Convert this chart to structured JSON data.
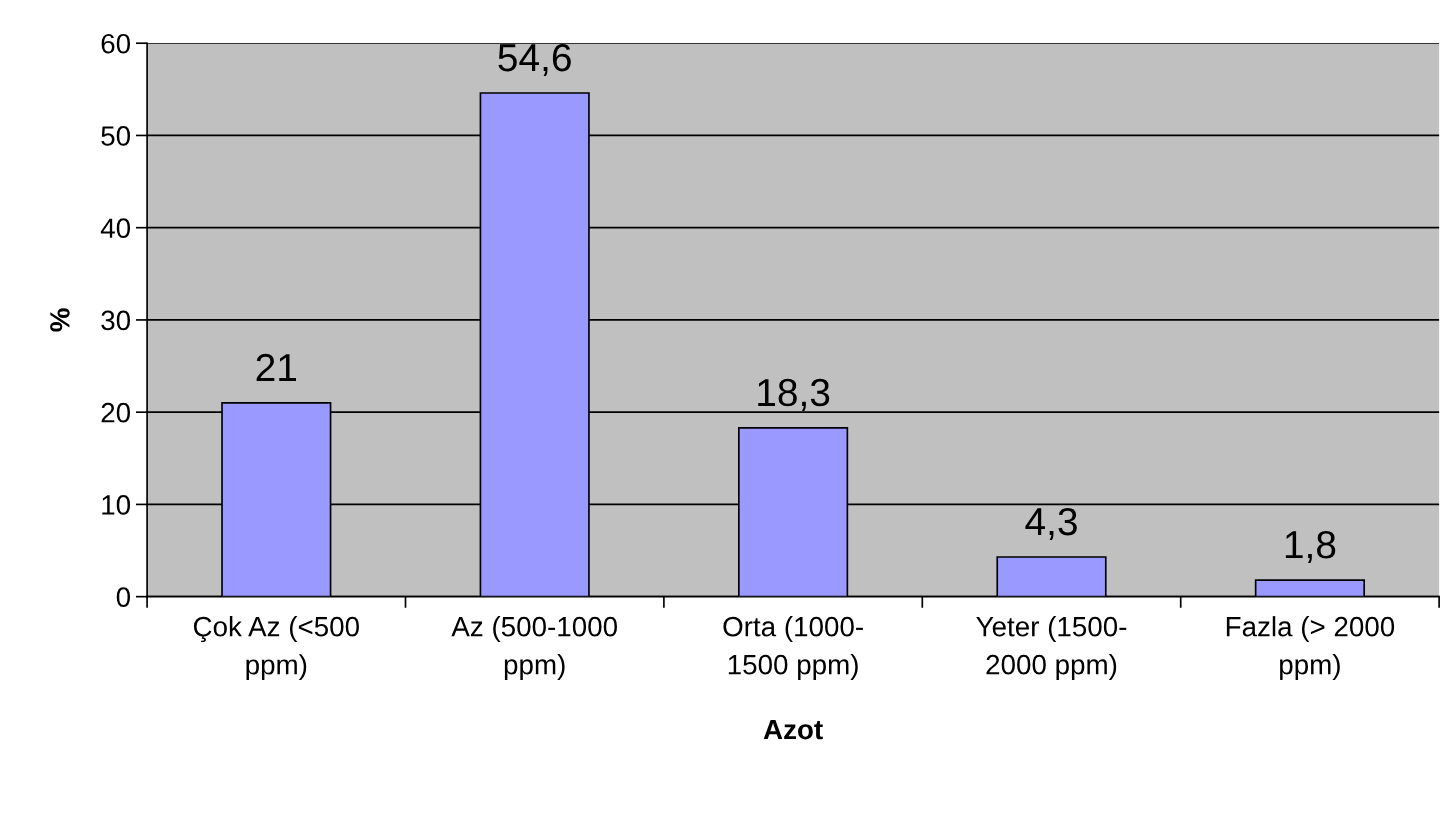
{
  "chart_data": {
    "type": "bar",
    "xlabel": "Azot",
    "ylabel": "%",
    "categories": [
      "Çok Az (<500\nppm)",
      "Az (500-1000\nppm)",
      "Orta (1000-\n1500 ppm)",
      "Yeter (1500-\n2000 ppm)",
      "Fazla (> 2000\nppm)"
    ],
    "values": [
      21,
      54.6,
      18.3,
      4.3,
      1.8
    ],
    "value_labels": [
      "21",
      "54,6",
      "18,3",
      "4,3",
      "1,8"
    ],
    "color": "#9999ff",
    "ylim": [
      0,
      60
    ],
    "yticks": [
      0,
      10,
      20,
      30,
      40,
      50,
      60
    ],
    "grid": "y"
  }
}
